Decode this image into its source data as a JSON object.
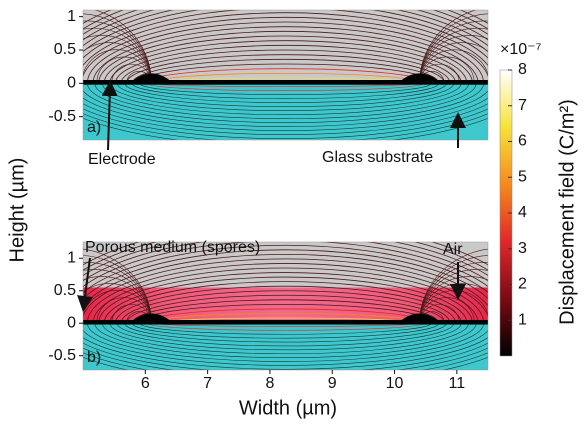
{
  "x_label": "Width (µm)",
  "y_label": "Height (µm)",
  "colorbar": {
    "label": "Displacement field (C/m²)",
    "exponent": "×10⁻⁷",
    "lim": [
      0,
      8
    ],
    "ticks": [
      1,
      2,
      3,
      4,
      5,
      6,
      7,
      8
    ]
  },
  "chart_data": [
    {
      "type": "field",
      "panel_label": "a)",
      "xlim": [
        5,
        11.5
      ],
      "ylim": [
        -0.85,
        1.1
      ],
      "yticks": [
        -0.5,
        0,
        0.5,
        1
      ],
      "annotations": [
        "Electrode",
        "Glass substrate"
      ]
    },
    {
      "type": "field",
      "panel_label": "b)",
      "xlim": [
        5,
        11.5
      ],
      "ylim": [
        -0.72,
        1.25
      ],
      "xticks": [
        6,
        7,
        8,
        9,
        10,
        11
      ],
      "yticks": [
        -0.5,
        0,
        0.5,
        1
      ],
      "annotations": [
        "Porous medium (spores)",
        "Air"
      ]
    }
  ]
}
